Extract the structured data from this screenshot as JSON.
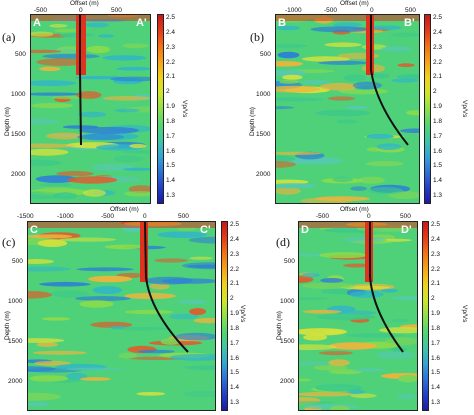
{
  "colorbar": {
    "label": "Vp/Vs",
    "ticks": [
      "2.5",
      "2.4",
      "2.3",
      "2.2",
      "2.1",
      "2",
      "1.9",
      "1.8",
      "1.7",
      "1.6",
      "1.5",
      "1.4",
      "1.3"
    ],
    "colors": [
      "#c41a1a",
      "#e53a18",
      "#f27216",
      "#f5a416",
      "#f0d21c",
      "#cfe62a",
      "#8ee14a",
      "#55d56f",
      "#41c6a4",
      "#35a5d3",
      "#2d72d8",
      "#2440c8",
      "#1a1aa8"
    ]
  },
  "panels": [
    {
      "letter": "(a)",
      "left_label": "A",
      "right_label": "A'",
      "x_title": "Offset (m)",
      "x_ticks": [
        "-500",
        "0",
        "500"
      ],
      "y_title": "Depth (m)",
      "y_ticks": [
        "500",
        "1000",
        "1500",
        "2000"
      ]
    },
    {
      "letter": "(b)",
      "left_label": "B",
      "right_label": "B'",
      "x_title": "Offset (m)",
      "x_ticks": [
        "-1000",
        "-500",
        "0",
        "500"
      ],
      "y_title": "Depth (m)",
      "y_ticks": [
        "500",
        "1000",
        "1500",
        "2000"
      ]
    },
    {
      "letter": "(c)",
      "left_label": "C",
      "right_label": "C'",
      "x_title": "Offset (m)",
      "x_ticks": [
        "-1500",
        "-1000",
        "-500",
        "0",
        "500"
      ],
      "y_title": "Depth (m)",
      "y_ticks": [
        "500",
        "1000",
        "1500",
        "2000"
      ]
    },
    {
      "letter": "(d)",
      "left_label": "D",
      "right_label": "D'",
      "x_title": "Offset (m)",
      "x_ticks": [
        "-500",
        "0",
        "500"
      ],
      "y_title": "Depth (m)",
      "y_ticks": [
        "500",
        "1000",
        "1500",
        "2000"
      ]
    }
  ]
}
